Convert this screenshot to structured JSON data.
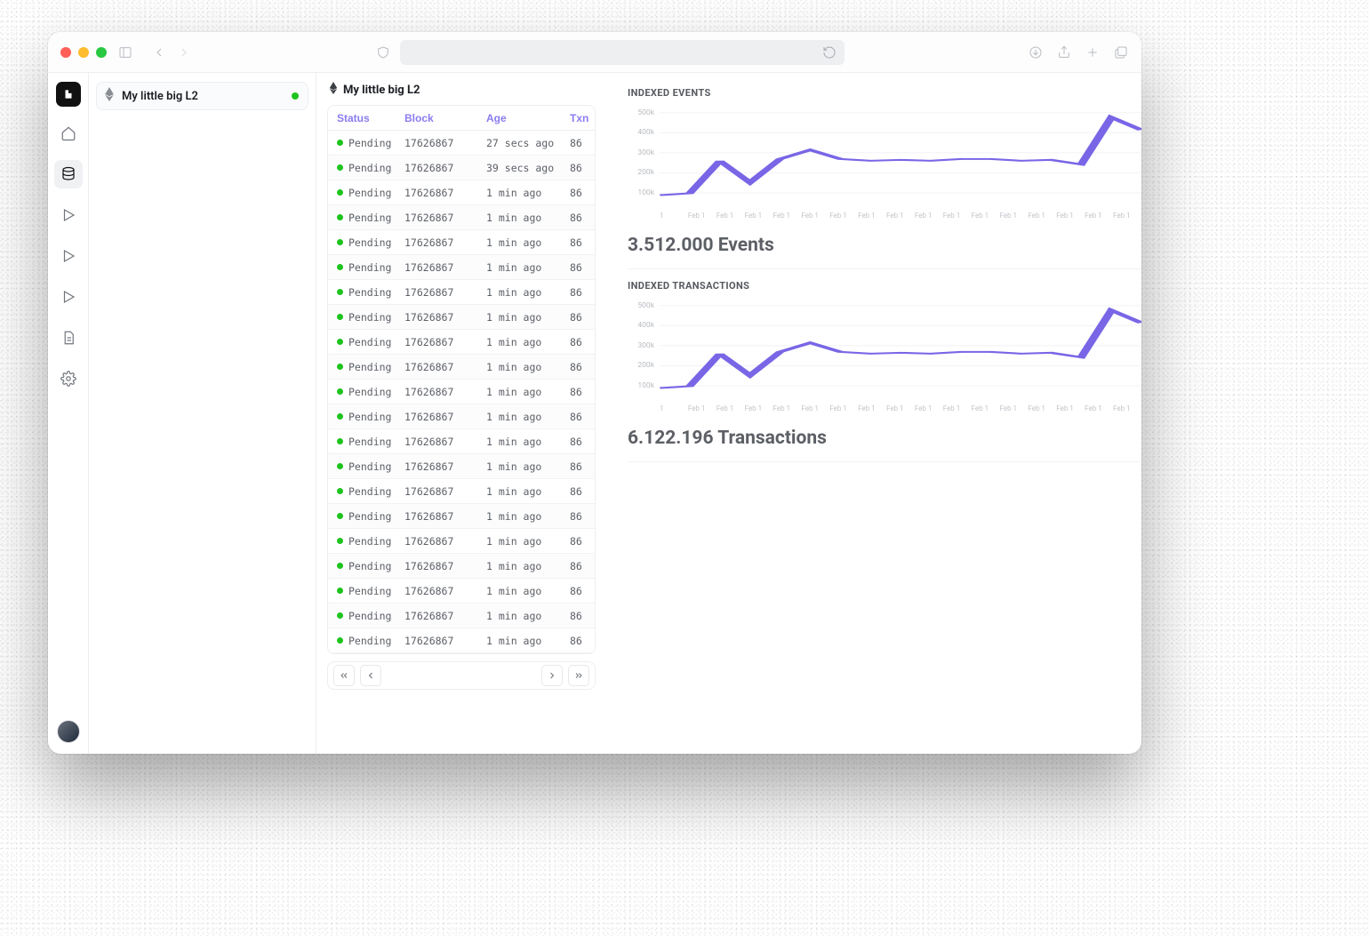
{
  "colors": {
    "accent": "#7866e6",
    "text": "#1b1e23",
    "muted": "#5c6066",
    "border": "#edeef1",
    "green": "#1ec31e",
    "head_text": "#8a7cf0",
    "chart_grid": "#f3f4f6",
    "window_bg": "#ffffff"
  },
  "titlebar": {
    "search_placeholder": ""
  },
  "rail": {
    "items": [
      "home",
      "database",
      "play",
      "play",
      "play",
      "doc",
      "settings"
    ],
    "active_index": 1
  },
  "project": {
    "name": "My little big L2",
    "status_color": "#1ec31e"
  },
  "page": {
    "title": "My little big L2"
  },
  "table": {
    "columns": [
      "Status",
      "Block",
      "Age",
      "Txn"
    ],
    "rows": [
      {
        "status": "Pending",
        "block": "17626867",
        "age": "27 secs ago",
        "txn": "86"
      },
      {
        "status": "Pending",
        "block": "17626867",
        "age": "39 secs ago",
        "txn": "86"
      },
      {
        "status": "Pending",
        "block": "17626867",
        "age": "1 min ago",
        "txn": "86"
      },
      {
        "status": "Pending",
        "block": "17626867",
        "age": "1 min ago",
        "txn": "86"
      },
      {
        "status": "Pending",
        "block": "17626867",
        "age": "1 min ago",
        "txn": "86"
      },
      {
        "status": "Pending",
        "block": "17626867",
        "age": "1 min ago",
        "txn": "86"
      },
      {
        "status": "Pending",
        "block": "17626867",
        "age": "1 min ago",
        "txn": "86"
      },
      {
        "status": "Pending",
        "block": "17626867",
        "age": "1 min ago",
        "txn": "86"
      },
      {
        "status": "Pending",
        "block": "17626867",
        "age": "1 min ago",
        "txn": "86"
      },
      {
        "status": "Pending",
        "block": "17626867",
        "age": "1 min ago",
        "txn": "86"
      },
      {
        "status": "Pending",
        "block": "17626867",
        "age": "1 min ago",
        "txn": "86"
      },
      {
        "status": "Pending",
        "block": "17626867",
        "age": "1 min ago",
        "txn": "86"
      },
      {
        "status": "Pending",
        "block": "17626867",
        "age": "1 min ago",
        "txn": "86"
      },
      {
        "status": "Pending",
        "block": "17626867",
        "age": "1 min ago",
        "txn": "86"
      },
      {
        "status": "Pending",
        "block": "17626867",
        "age": "1 min ago",
        "txn": "86"
      },
      {
        "status": "Pending",
        "block": "17626867",
        "age": "1 min ago",
        "txn": "86"
      },
      {
        "status": "Pending",
        "block": "17626867",
        "age": "1 min ago",
        "txn": "86"
      },
      {
        "status": "Pending",
        "block": "17626867",
        "age": "1 min ago",
        "txn": "86"
      },
      {
        "status": "Pending",
        "block": "17626867",
        "age": "1 min ago",
        "txn": "86"
      },
      {
        "status": "Pending",
        "block": "17626867",
        "age": "1 min ago",
        "txn": "86"
      },
      {
        "status": "Pending",
        "block": "17626867",
        "age": "1 min ago",
        "txn": "86"
      }
    ]
  },
  "charts": {
    "events": {
      "title": "INDEXED EVENTS",
      "type": "line",
      "y_ticks": [
        "500k",
        "400k",
        "300k",
        "200k",
        "100k"
      ],
      "y_max": 500000,
      "x_labels": [
        "1",
        "Feb 1",
        "Feb 1",
        "Feb 1",
        "Feb 1",
        "Feb 1",
        "Feb 1",
        "Feb 1",
        "Feb 1",
        "Feb 1",
        "Feb 1",
        "Feb 1",
        "Feb 1",
        "Feb 1",
        "Feb 1",
        "Feb 1",
        "Feb 1"
      ],
      "values": [
        60000,
        70000,
        250000,
        130000,
        260000,
        310000,
        260000,
        250000,
        255000,
        250000,
        260000,
        260000,
        250000,
        255000,
        230000,
        490000,
        420000
      ],
      "line_color": "#7866e6",
      "line_width": 1.8,
      "grid_color": "#f3f4f6",
      "background_color": "#ffffff",
      "metric": "3.512.000 Events"
    },
    "transactions": {
      "title": "INDEXED TRANSACTIONS",
      "type": "line",
      "y_ticks": [
        "500k",
        "400k",
        "300k",
        "200k",
        "100k"
      ],
      "y_max": 500000,
      "x_labels": [
        "1",
        "Feb 1",
        "Feb 1",
        "Feb 1",
        "Feb 1",
        "Feb 1",
        "Feb 1",
        "Feb 1",
        "Feb 1",
        "Feb 1",
        "Feb 1",
        "Feb 1",
        "Feb 1",
        "Feb 1",
        "Feb 1",
        "Feb 1",
        "Feb 1"
      ],
      "values": [
        60000,
        70000,
        250000,
        130000,
        260000,
        310000,
        260000,
        250000,
        255000,
        250000,
        260000,
        260000,
        250000,
        255000,
        230000,
        490000,
        420000
      ],
      "line_color": "#7866e6",
      "line_width": 1.8,
      "grid_color": "#f3f4f6",
      "background_color": "#ffffff",
      "metric": "6.122.196 Transactions"
    }
  }
}
